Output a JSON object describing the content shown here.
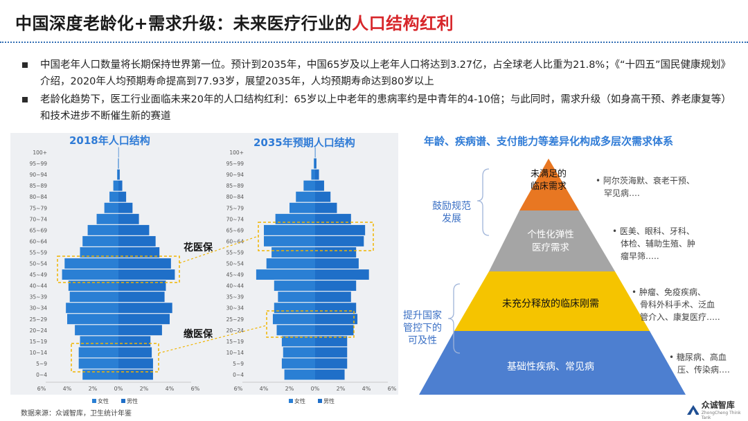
{
  "title": {
    "main": "中国深度老龄化+需求升级：未来医疗行业的",
    "highlight": "人口结构红利"
  },
  "bullets": [
    "中国老年人口数量将长期保持世界第一位。预计到2035年，中国65岁及以上老年人口将达到3.27亿，占全球老人比重为21.8%；《“十四五”国民健康规划》介绍，2020年人均预期寿命提高到77.93岁，展望2035年，人均预期寿命达到80岁以上",
    "老龄化趋势下，医工行业面临未来20年的人口结构红利：65岁以上中老年的患病率约是中青年的4-10倍；与此同时，需求升级（如身高干预、养老康复等）和技术进步不断催生新的赛道"
  ],
  "pyramids": {
    "title_2018": "2018年人口结构",
    "title_2035": "2035年预期人口结构",
    "age_groups": [
      "0~4",
      "5~9",
      "10~14",
      "15~19",
      "20~24",
      "25~29",
      "30~34",
      "35~39",
      "40~44",
      "45~49",
      "50~54",
      "55~59",
      "60~64",
      "65~69",
      "70~74",
      "75~79",
      "80~84",
      "85~89",
      "90~94",
      "95~99",
      "100+"
    ],
    "x_ticks": [
      "6%",
      "4%",
      "2%",
      "0%",
      "2%",
      "4%",
      "6%"
    ],
    "legend_female": "女性",
    "legend_male": "男性",
    "label_huayibao": "花医保",
    "label_jiaoyibao": "缴医保"
  },
  "chart_data": [
    {
      "type": "bar",
      "title": "2018年人口结构",
      "categories": [
        "0~4",
        "5~9",
        "10~14",
        "15~19",
        "20~24",
        "25~29",
        "30~34",
        "35~39",
        "40~44",
        "45~49",
        "50~54",
        "55~59",
        "60~64",
        "65~69",
        "70~74",
        "75~79",
        "80~84",
        "85~89",
        "90~94",
        "95~99",
        "100+"
      ],
      "series": [
        {
          "name": "女性",
          "values": [
            2.8,
            3.1,
            3.1,
            3.0,
            3.4,
            4.0,
            4.1,
            3.8,
            3.9,
            4.4,
            4.2,
            3.0,
            2.8,
            2.4,
            1.7,
            1.1,
            0.7,
            0.4,
            0.1,
            0.03,
            0.01
          ]
        },
        {
          "name": "男性",
          "values": [
            2.7,
            2.7,
            2.6,
            2.5,
            3.4,
            4.0,
            4.2,
            3.6,
            3.7,
            4.4,
            4.1,
            3.2,
            2.9,
            2.4,
            1.6,
            1.1,
            0.6,
            0.3,
            0.1,
            0.02,
            0.01
          ]
        }
      ],
      "xlim": [
        -6,
        6
      ]
    },
    {
      "type": "bar",
      "title": "2035年预期人口结构",
      "categories": [
        "0~4",
        "5~9",
        "10~14",
        "15~19",
        "20~24",
        "25~29",
        "30~34",
        "35~39",
        "40~44",
        "45~49",
        "50~54",
        "55~59",
        "60~64",
        "65~69",
        "70~74",
        "75~79",
        "80~84",
        "85~89",
        "90~94",
        "95~99",
        "100+"
      ],
      "series": [
        {
          "name": "女性",
          "values": [
            2.4,
            2.6,
            2.5,
            2.6,
            3.0,
            3.3,
            3.2,
            2.9,
            3.2,
            4.6,
            3.8,
            3.4,
            4.0,
            4.0,
            3.1,
            2.0,
            1.5,
            0.9,
            0.3,
            0.1,
            0.02
          ]
        },
        {
          "name": "男性",
          "values": [
            2.3,
            2.5,
            2.5,
            2.5,
            3.0,
            3.3,
            3.2,
            2.8,
            3.2,
            4.2,
            3.4,
            3.2,
            3.8,
            3.9,
            2.8,
            1.7,
            1.2,
            0.7,
            0.3,
            0.1,
            0.02
          ]
        }
      ],
      "xlim": [
        -6,
        6
      ]
    }
  ],
  "hierarchy": {
    "title": "年龄、疾病谱、支付能力等差异化构成多层次需求体系",
    "levels": [
      {
        "label": "未满足的临床需求",
        "color": "#e87722",
        "desc": "阿尔茨海默、衰老干预、罕见病…."
      },
      {
        "label": "个性化弹性医疗需求",
        "color": "#a5a5a5",
        "desc": "医美、眼科、牙科、体检、辅助生殖、肿瘤早筛….."
      },
      {
        "label": "未充分释放的临床刚需",
        "color": "#f5c400",
        "desc": "肿瘤、免疫疾病、骨科外科手术、泛血管介入、康复医疗….."
      },
      {
        "label": "基础性疾病、常见病",
        "color": "#4d7fd0",
        "desc": "糖尿病、高血压、传染病…."
      }
    ],
    "brace_upper": "鼓励规范发展",
    "brace_lower": "提升国家管控下的可及性"
  },
  "source": "数据来源：众诚智库，卫生统计年鉴",
  "logo": {
    "name": "众诚智库",
    "sub": "ZhongCheng Think Tank"
  }
}
